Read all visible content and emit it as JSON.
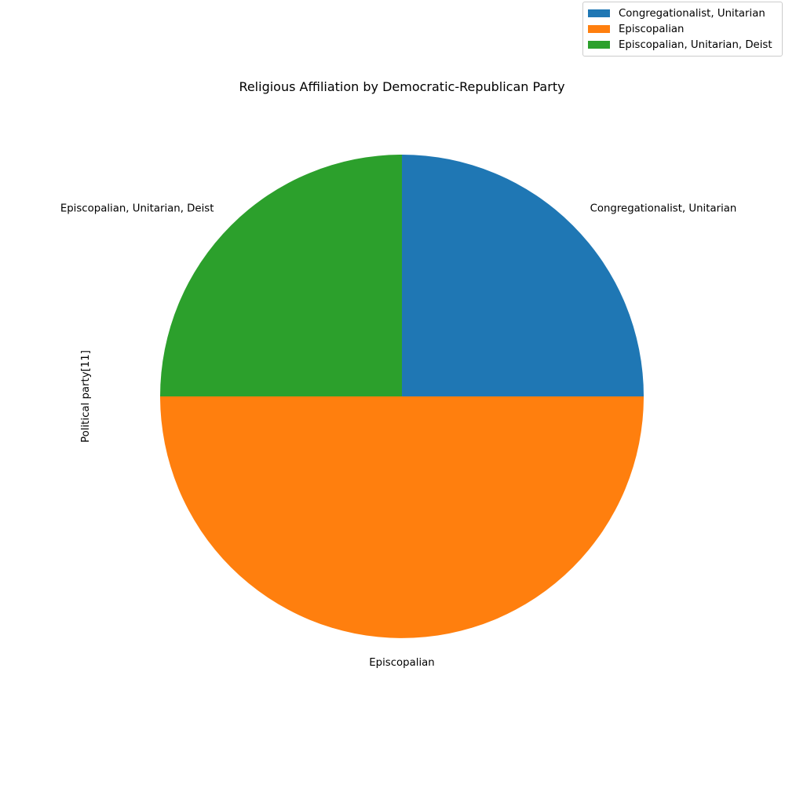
{
  "chart_data": {
    "type": "pie",
    "title": "Religious Affiliation by Democratic-Republican Party",
    "ylabel": "Political party[11]",
    "categories": [
      "Congregationalist, Unitarian",
      "Episcopalian",
      "Episcopalian, Unitarian, Deist"
    ],
    "values": [
      1,
      2,
      1
    ],
    "colors": [
      "#1f77b4",
      "#ff7f0e",
      "#2ca02c"
    ],
    "start_angle_deg": 90,
    "direction": "clockwise",
    "legend_position": "top-right"
  }
}
